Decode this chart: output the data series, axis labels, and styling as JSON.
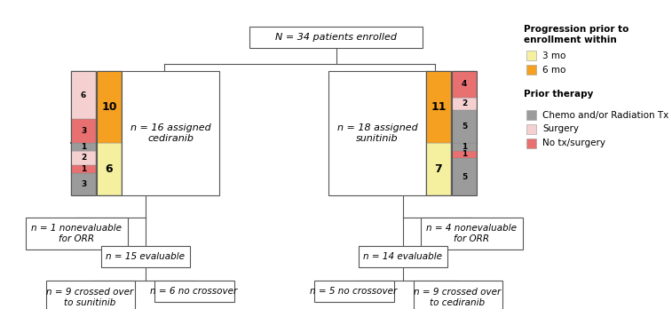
{
  "title_box": "N = 34 patients enrolled",
  "ced_box": "n = 16 assigned\ncediranib",
  "sun_box": "n = 18 assigned\nsunitinib",
  "ced_noneval_box": "n = 1 nonevaluable\nfor ORR",
  "sun_noneval_box": "n = 4 nonevaluable\nfor ORR",
  "ced_eval_box": "n = 15 evaluable",
  "sun_eval_box": "n = 14 evaluable",
  "ced_cross_box": "n = 9 crossed over\nto sunitinib",
  "ced_nocross_box": "n = 6 no crossover",
  "sun_nocross_box": "n = 5 no crossover",
  "sun_cross_box": "n = 9 crossed over\nto cediranib",
  "legend_prog_title": "Progression prior to\nenrollment within",
  "legend_3mo": "3 mo",
  "legend_6mo": "6 mo",
  "legend_prior_title": "Prior therapy",
  "legend_chemo": "Chemo and/or Radiation Tx",
  "legend_surgery": "Surgery",
  "legend_notx": "No tx/surgery",
  "color_3mo": "#f5f0a0",
  "color_6mo": "#f5a020",
  "color_chemo": "#9b9b9b",
  "color_surgery": "#f5d0d0",
  "color_notx": "#e87070",
  "bg_color": "#ffffff",
  "line_color": "#555555",
  "ced_left_top_segs": [
    [
      3,
      "#e87070"
    ],
    [
      6,
      "#f5d0d0"
    ],
    [
      10,
      "#f5a020"
    ]
  ],
  "ced_left_bot_segs": [
    [
      1,
      "#9b9b9b"
    ],
    [
      2,
      "#f5d0d0"
    ],
    [
      1,
      "#e87070"
    ],
    [
      3,
      "#9b9b9b"
    ],
    [
      6,
      "#f5f0a0"
    ]
  ],
  "ced_right_top_segs": [
    [
      10,
      "#f5a020"
    ]
  ],
  "ced_right_bot_segs": [
    [
      6,
      "#f5f0a0"
    ]
  ],
  "sun_left_top_segs": [
    [
      11,
      "#f5a020"
    ]
  ],
  "sun_left_bot_segs": [
    [
      7,
      "#f5f0a0"
    ]
  ],
  "sun_right_top_segs": [
    [
      4,
      "#e87070"
    ],
    [
      2,
      "#f5d0d0"
    ],
    [
      5,
      "#9b9b9b"
    ],
    [
      11,
      "#f5a020"
    ]
  ],
  "sun_right_bot_segs": [
    [
      1,
      "#9b9b9b"
    ],
    [
      1,
      "#e87070"
    ],
    [
      5,
      "#9b9b9b"
    ],
    [
      7,
      "#f5f0a0"
    ]
  ]
}
